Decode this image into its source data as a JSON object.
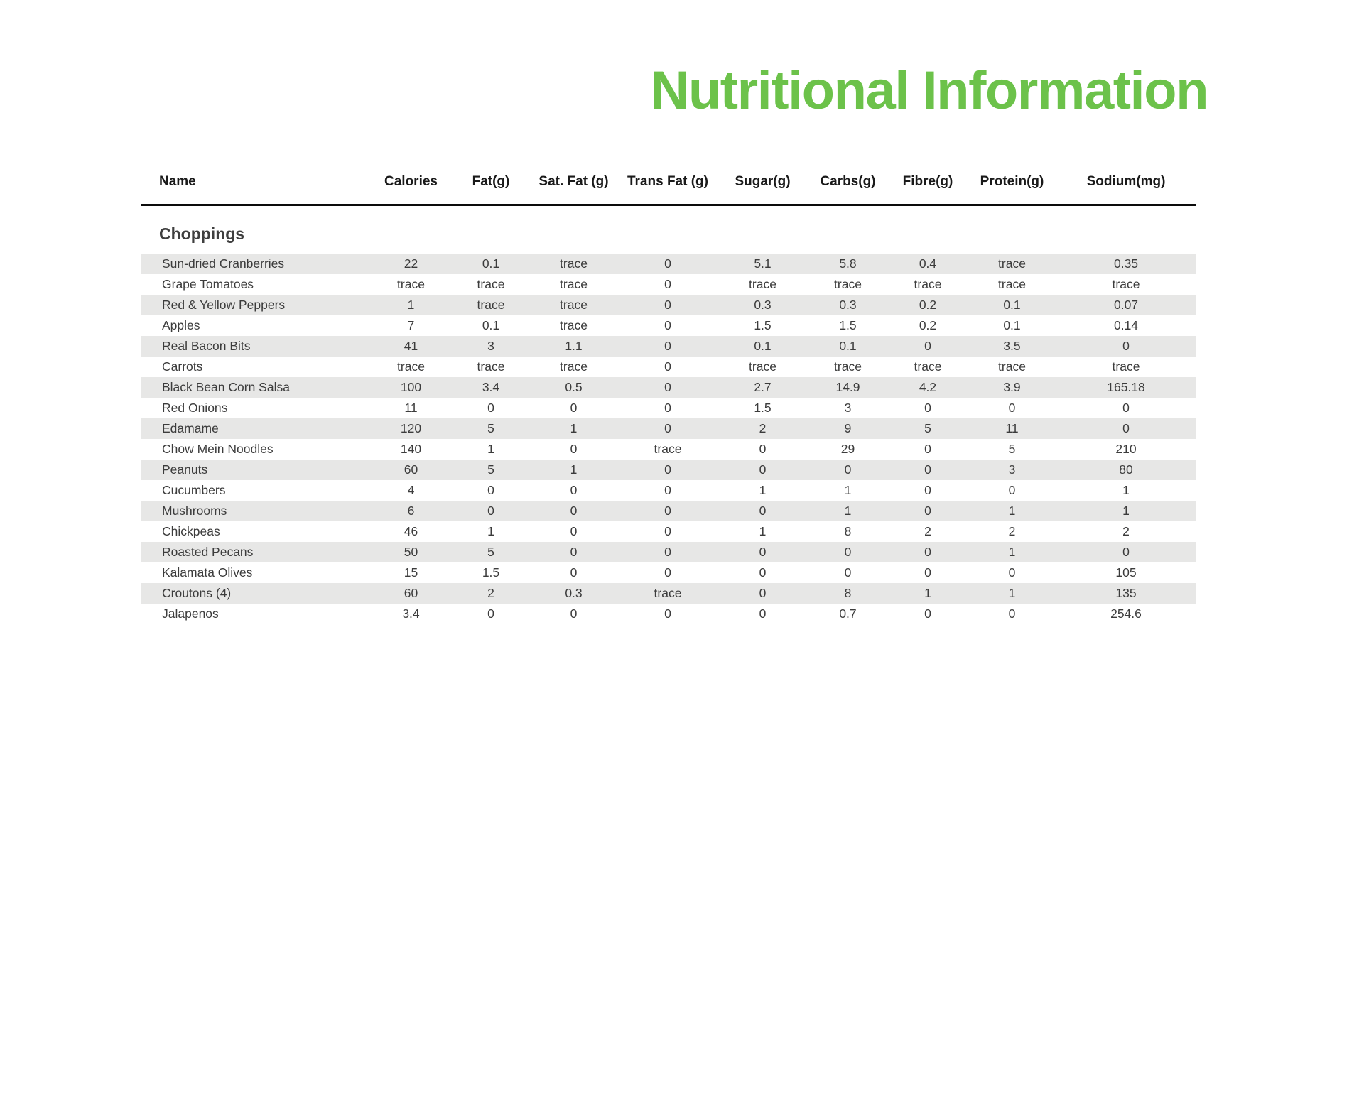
{
  "title": "Nutritional Information",
  "colors": {
    "title_green": "#6cc24a",
    "stripe_gray": "#e7e7e6",
    "header_text": "#1a1a1a",
    "body_text": "#3c3c3c"
  },
  "table": {
    "columns": [
      "Name",
      "Calories",
      "Fat(g)",
      "Sat. Fat (g)",
      "Trans Fat (g)",
      "Sugar(g)",
      "Carbs(g)",
      "Fibre(g)",
      "Protein(g)",
      "Sodium(mg)"
    ],
    "section_label": "Choppings",
    "rows": [
      [
        "Sun-dried Cranberries",
        "22",
        "0.1",
        "trace",
        "0",
        "5.1",
        "5.8",
        "0.4",
        "trace",
        "0.35"
      ],
      [
        "Grape Tomatoes",
        "trace",
        "trace",
        "trace",
        "0",
        "trace",
        "trace",
        "trace",
        "trace",
        "trace"
      ],
      [
        "Red & Yellow Peppers",
        "1",
        "trace",
        "trace",
        "0",
        "0.3",
        "0.3",
        "0.2",
        "0.1",
        "0.07"
      ],
      [
        "Apples",
        "7",
        "0.1",
        "trace",
        "0",
        "1.5",
        "1.5",
        "0.2",
        "0.1",
        "0.14"
      ],
      [
        "Real Bacon Bits",
        "41",
        "3",
        "1.1",
        "0",
        "0.1",
        "0.1",
        "0",
        "3.5",
        "0"
      ],
      [
        "Carrots",
        "trace",
        "trace",
        "trace",
        "0",
        "trace",
        "trace",
        "trace",
        "trace",
        "trace"
      ],
      [
        "Black Bean Corn Salsa",
        "100",
        "3.4",
        "0.5",
        "0",
        "2.7",
        "14.9",
        "4.2",
        "3.9",
        "165.18"
      ],
      [
        "Red Onions",
        "11",
        "0",
        "0",
        "0",
        "1.5",
        "3",
        "0",
        "0",
        "0"
      ],
      [
        "Edamame",
        "120",
        "5",
        "1",
        "0",
        "2",
        "9",
        "5",
        "11",
        "0"
      ],
      [
        "Chow Mein Noodles",
        "140",
        "1",
        "0",
        "trace",
        "0",
        "29",
        "0",
        "5",
        "210"
      ],
      [
        "Peanuts",
        "60",
        "5",
        "1",
        "0",
        "0",
        "0",
        "0",
        "3",
        "80"
      ],
      [
        "Cucumbers",
        "4",
        "0",
        "0",
        "0",
        "1",
        "1",
        "0",
        "0",
        "1"
      ],
      [
        "Mushrooms",
        "6",
        "0",
        "0",
        "0",
        "0",
        "1",
        "0",
        "1",
        "1"
      ],
      [
        "Chickpeas",
        "46",
        "1",
        "0",
        "0",
        "1",
        "8",
        "2",
        "2",
        "2"
      ],
      [
        "Roasted Pecans",
        "50",
        "5",
        "0",
        "0",
        "0",
        "0",
        "0",
        "1",
        "0"
      ],
      [
        "Kalamata Olives",
        "15",
        "1.5",
        "0",
        "0",
        "0",
        "0",
        "0",
        "0",
        "105"
      ],
      [
        "Croutons (4)",
        "60",
        "2",
        "0.3",
        "trace",
        "0",
        "8",
        "1",
        "1",
        "135"
      ],
      [
        "Jalapenos",
        "3.4",
        "0",
        "0",
        "0",
        "0",
        "0.7",
        "0",
        "0",
        "254.6"
      ]
    ]
  }
}
